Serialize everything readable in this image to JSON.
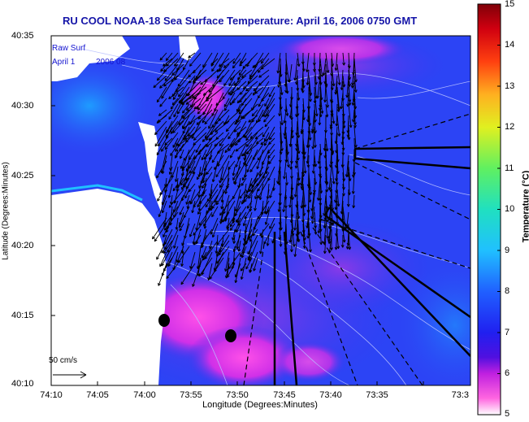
{
  "title": "RU COOL  NOAA-18  Sea Surface Temperature:  April 16, 2006 0750 GMT",
  "overlay_line1": "Raw Surf",
  "overlay_line2": "April 1",
  "overlay_line2b": "2006 08",
  "scale_label": "50 cm/s",
  "x_axis": {
    "label": "Longitude (Degrees:Minutes)",
    "ticks": [
      "74:10",
      "74:05",
      "74:00",
      "73:55",
      "73:50",
      "73:45",
      "73:40",
      "73:35",
      "73:3"
    ]
  },
  "y_axis": {
    "label": "Latitude (Degrees:Minutes)",
    "ticks": [
      "40:35",
      "40:30",
      "40:25",
      "40:20",
      "40:15",
      "40:10"
    ]
  },
  "colorbar": {
    "label": "Temperature (°C)",
    "ticks": [
      "15",
      "14",
      "13",
      "12",
      "11",
      "10",
      "9",
      "8",
      "7",
      "6",
      "5"
    ],
    "range": [
      5,
      15
    ]
  },
  "colors": {
    "title": "#1515a8",
    "sea": "#2a3cf5",
    "land": "#ffffff",
    "arrows": "#000000"
  }
}
